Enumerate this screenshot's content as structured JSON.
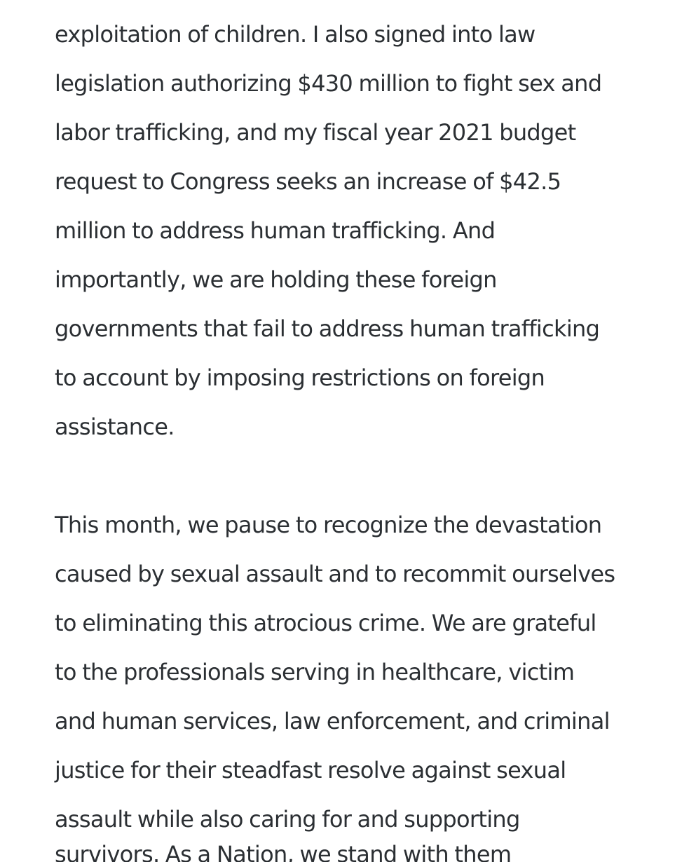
{
  "article": {
    "paragraphs": [
      {
        "lines": [
          "exploitation of children.  I also signed into law",
          "legislation authorizing $430 million to fight sex and",
          "labor trafficking, and my fiscal year 2021 budget",
          "request to Congress seeks an increase of $42.5",
          "million to address human trafficking.  And",
          "importantly, we are holding these foreign",
          "governments that fail to address human trafficking",
          "to account by imposing restrictions on foreign",
          "assistance."
        ]
      },
      {
        "lines": [
          "This month, we pause to recognize the devastation",
          "caused by sexual assault and to recommit ourselves",
          "to eliminating this atrocious crime.  We are grateful",
          "to the professionals serving in healthcare, victim",
          "and human services, law enforcement, and criminal",
          "justice for their steadfast resolve against sexual",
          "assault while also caring for and supporting"
        ]
      }
    ],
    "cut_off_line": "survivors.  As a Nation, we stand with them"
  }
}
